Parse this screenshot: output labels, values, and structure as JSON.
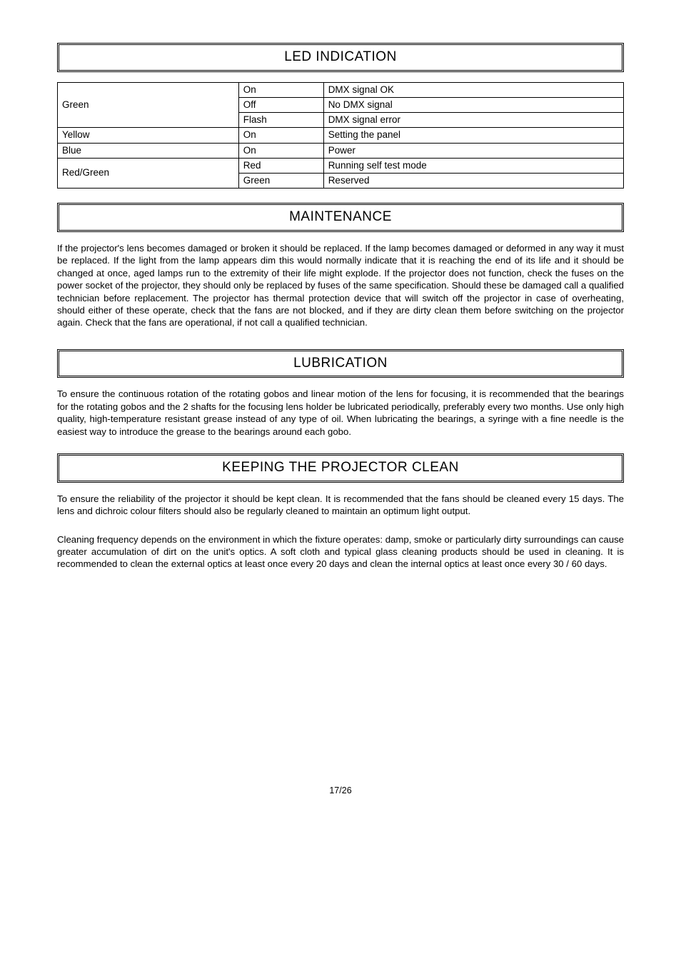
{
  "sections": {
    "led_indication": {
      "title": "LED INDICATION",
      "table": {
        "columns": [
          "col1",
          "col2",
          "col3"
        ],
        "rows": [
          {
            "c1": "",
            "c2": "On",
            "c3": "DMX signal OK",
            "rowspan_c1": 3,
            "c1_text": "Green"
          },
          {
            "c1": "",
            "c2": "Off",
            "c3": "No DMX signal"
          },
          {
            "c1": "",
            "c2": "Flash",
            "c3": "DMX signal error"
          },
          {
            "c1": "Yellow",
            "c2": "On",
            "c3": "Setting the panel"
          },
          {
            "c1": "Blue",
            "c2": "On",
            "c3": "Power"
          },
          {
            "c1": "",
            "c2": "Red",
            "c3": "Running self test mode",
            "rowspan_c1": 2,
            "c1_text": "Red/Green"
          },
          {
            "c1": "",
            "c2": "Green",
            "c3": "Reserved"
          }
        ]
      }
    },
    "maintenance": {
      "title": "MAINTENANCE",
      "body": "If the projector's lens becomes damaged or broken it should be replaced. If the lamp becomes damaged or deformed in any way it must be replaced. If the light from the lamp appears dim this would normally indicate that it is reaching the end of its life and it should be changed at once, aged lamps run to the extremity of their life might explode. If the projector does not function, check the fuses on the power socket of the projector, they should only be replaced by fuses of the same specification. Should these be damaged call a qualified technician before replacement. The projector has thermal protection device that will switch off the projector in case of overheating, should either of these operate, check that the fans are not blocked, and if they are dirty clean them before switching on the projector again. Check that the fans are operational, if not call a qualified technician."
    },
    "lubrication": {
      "title": "LUBRICATION",
      "body": "To ensure the continuous rotation of the rotating gobos and linear motion of the lens for focusing, it is recommended that the bearings for the rotating gobos and the 2 shafts for the focusing lens holder be lubricated periodically, preferably every two months. Use only high quality, high-temperature resistant grease instead of any type of oil. When lubricating the bearings, a syringe with a fine needle is the easiest way to introduce the grease to the bearings around each gobo."
    },
    "keeping_clean": {
      "title": "KEEPING THE PROJECTOR CLEAN",
      "body1": "To ensure the reliability of the projector it should be kept clean. It is recommended that the fans should be cleaned every 15 days. The lens and dichroic colour filters should also be regularly cleaned to maintain an optimum light output.",
      "body2": "Cleaning frequency depends on the environment in which the fixture operates: damp, smoke or particularly dirty surroundings can cause greater accumulation of dirt on the unit's optics. A soft cloth and typical glass cleaning products should be used in cleaning. It is recommended to clean the external optics at least once every 20 days and clean the internal optics at least once every 30 / 60 days."
    }
  },
  "footer": "17/26",
  "style": {
    "background_color": "#ffffff",
    "text_color": "#000000",
    "border_color": "#000000",
    "header_fontsize": 19,
    "body_fontsize": 13.2,
    "table_fontsize": 13.5
  }
}
